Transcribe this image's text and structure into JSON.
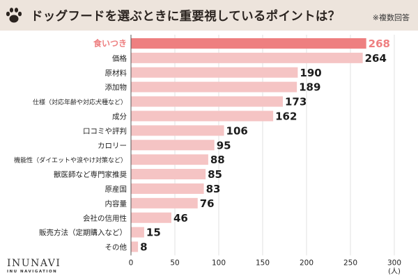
{
  "header": {
    "title": "ドッグフードを選ぶときに重要視しているポイントは？",
    "note": "※複数回答",
    "icon": "paw-icon",
    "background": "#ede4dc"
  },
  "brand": {
    "name": "INUNAVI",
    "subtitle": "INU NAVIGATION"
  },
  "chart_data": {
    "type": "bar",
    "orientation": "horizontal",
    "categories": [
      "食いつき",
      "価格",
      "原材料",
      "添加物",
      "仕様（対応年齢や対応犬種など）",
      "成分",
      "口コミや評判",
      "カロリー",
      "機能性（ダイエットや涙やけ対策など）",
      "獣医師など専門家推奨",
      "原産国",
      "内容量",
      "会社の信用性",
      "販売方法（定期購入など）",
      "その他"
    ],
    "values": [
      268,
      264,
      190,
      189,
      173,
      162,
      106,
      95,
      88,
      85,
      83,
      76,
      46,
      15,
      8
    ],
    "highlight_index": 0,
    "xlim": [
      0,
      300
    ],
    "xticks": [
      0,
      50,
      100,
      150,
      200,
      250,
      300
    ],
    "unit": "(人)",
    "bar_color": "#f5c4c4",
    "highlight_color": "#ee7f80",
    "grid": true,
    "grid_color": "#e2e2e2"
  }
}
